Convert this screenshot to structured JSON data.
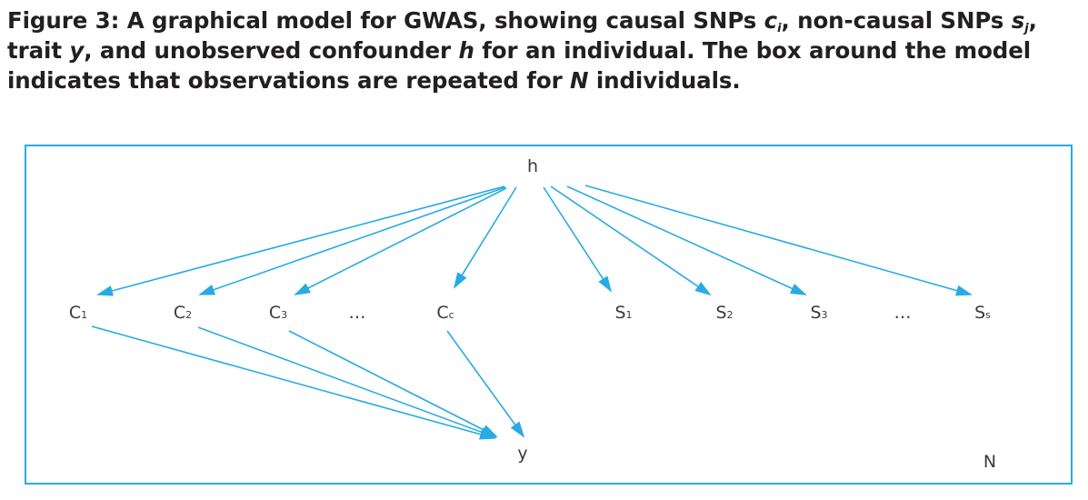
{
  "caption": {
    "part1": "Figure 3: A graphical model for GWAS, showing causal SNPs ",
    "c_var": "c",
    "c_sub": "i",
    "part2": ", non-causal SNPs ",
    "s_var": "s",
    "s_sub": "j",
    "part3": ", trait ",
    "y_var": "y",
    "part4": ", and unobserved confounder ",
    "h_var": "h",
    "part5": " for an individual. The box around the model indicates that observations are repeated for ",
    "n_var": "N",
    "part6": " individuals."
  },
  "diagram": {
    "colors": {
      "arrow": "#29abe2",
      "plate": "#29abe2",
      "text": "#3a3a3a"
    },
    "nodes": {
      "h": {
        "label": "h",
        "sub": ""
      },
      "c1": {
        "label": "C",
        "sub": "1"
      },
      "c2": {
        "label": "C",
        "sub": "2"
      },
      "c3": {
        "label": "C",
        "sub": "3"
      },
      "c_ellipsis": {
        "label": "…",
        "sub": ""
      },
      "cc": {
        "label": "C",
        "sub": "c"
      },
      "s1": {
        "label": "S",
        "sub": "1"
      },
      "s2": {
        "label": "S",
        "sub": "2"
      },
      "s3": {
        "label": "S",
        "sub": "3"
      },
      "s_ellipsis": {
        "label": "…",
        "sub": ""
      },
      "ss": {
        "label": "S",
        "sub": "s"
      },
      "y": {
        "label": "y",
        "sub": ""
      }
    },
    "plate_label": "N",
    "edges": [
      [
        "h",
        "c1"
      ],
      [
        "h",
        "c2"
      ],
      [
        "h",
        "c3"
      ],
      [
        "h",
        "cc"
      ],
      [
        "h",
        "s1"
      ],
      [
        "h",
        "s2"
      ],
      [
        "h",
        "s3"
      ],
      [
        "h",
        "ss"
      ],
      [
        "c1",
        "y"
      ],
      [
        "c2",
        "y"
      ],
      [
        "c3",
        "y"
      ],
      [
        "cc",
        "y"
      ]
    ]
  }
}
